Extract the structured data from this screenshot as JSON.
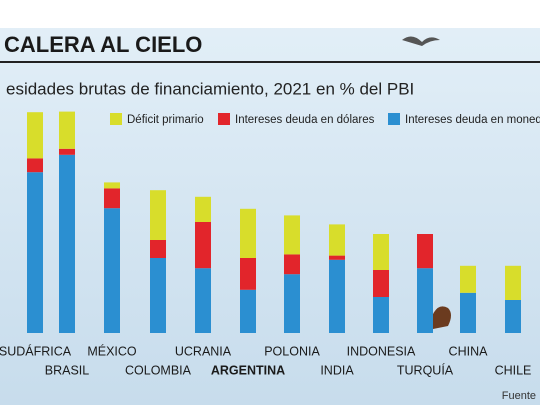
{
  "chart_data": {
    "type": "stacked_bar",
    "title": "CALERA AL CIELO",
    "subtitle": "esidades brutas de financiamiento, 2021 en % del PBI",
    "source": "Fuente",
    "categories": [
      "SUDÁFRICA",
      "BRASIL",
      "MÉXICO",
      "COLOMBIA",
      "UCRANIA",
      "ARGENTINA",
      "POLONIA",
      "INDIA",
      "INDONESIA",
      "TURQUÍA",
      "CHINA",
      "CHILE"
    ],
    "highlight_index": 5,
    "series": [
      {
        "name": "Déficit primario",
        "color": "#d8dd2b",
        "values": [
          7.7,
          6.2,
          1.0,
          8.3,
          4.2,
          8.2,
          6.5,
          5.2,
          6.0,
          0,
          4.5,
          5.7
        ]
      },
      {
        "name": "Intereses deuda en dólares",
        "color": "#e2252b",
        "values": [
          2.3,
          1.0,
          3.3,
          3.0,
          7.7,
          5.3,
          3.3,
          0.7,
          4.5,
          5.7,
          0,
          0
        ]
      },
      {
        "name": "Intereses deuda en moneda",
        "color": "#2b8fd1",
        "values": [
          26.8,
          29.7,
          20.8,
          12.5,
          10.8,
          7.2,
          9.8,
          12.2,
          6.0,
          10.8,
          6.7,
          5.5
        ]
      }
    ],
    "ylim": [
      0,
      40
    ]
  }
}
